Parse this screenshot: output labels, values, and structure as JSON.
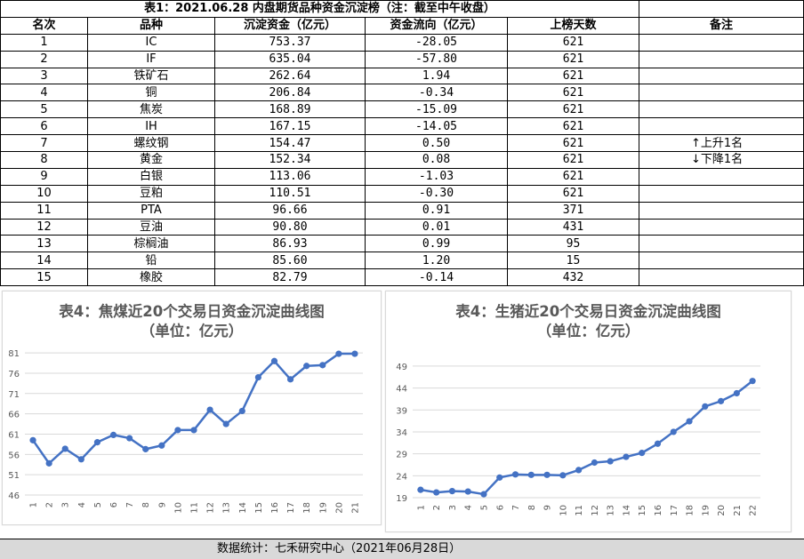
{
  "table": {
    "title": "表1：2021.06.28 内盘期货品种资金沉淀榜（注：截至中午收盘）",
    "headers": [
      "名次",
      "品种",
      "沉淀资金（亿元）",
      "资金流向（亿元）",
      "上榜天数",
      "备注"
    ],
    "rows": [
      {
        "rank": "1",
        "name": "IC",
        "capital": "753.37",
        "flow": "-28.05",
        "days": "621",
        "note": ""
      },
      {
        "rank": "2",
        "name": "IF",
        "capital": "635.04",
        "flow": "-57.80",
        "days": "621",
        "note": ""
      },
      {
        "rank": "3",
        "name": "铁矿石",
        "capital": "262.64",
        "flow": "1.94",
        "days": "621",
        "note": ""
      },
      {
        "rank": "4",
        "name": "铜",
        "capital": "206.84",
        "flow": "-0.34",
        "days": "621",
        "note": ""
      },
      {
        "rank": "5",
        "name": "焦炭",
        "capital": "168.89",
        "flow": "-15.09",
        "days": "621",
        "note": ""
      },
      {
        "rank": "6",
        "name": "IH",
        "capital": "167.15",
        "flow": "-14.05",
        "days": "621",
        "note": ""
      },
      {
        "rank": "7",
        "name": "螺纹钢",
        "capital": "154.47",
        "flow": "0.50",
        "days": "621",
        "note": "上升1名"
      },
      {
        "rank": "8",
        "name": "黄金",
        "capital": "152.34",
        "flow": "0.08",
        "days": "621",
        "note": "下降1名"
      },
      {
        "rank": "9",
        "name": "白银",
        "capital": "113.06",
        "flow": "-1.03",
        "days": "621",
        "note": ""
      },
      {
        "rank": "10",
        "name": "豆粕",
        "capital": "110.51",
        "flow": "-0.30",
        "days": "621",
        "note": ""
      },
      {
        "rank": "11",
        "name": "PTA",
        "capital": "96.66",
        "flow": "0.91",
        "days": "371",
        "note": ""
      },
      {
        "rank": "12",
        "name": "豆油",
        "capital": "90.80",
        "flow": "0.01",
        "days": "431",
        "note": ""
      },
      {
        "rank": "13",
        "name": "棕榈油",
        "capital": "86.93",
        "flow": "0.99",
        "days": "95",
        "note": ""
      },
      {
        "rank": "14",
        "name": "铅",
        "capital": "85.60",
        "flow": "1.20",
        "days": "15",
        "note": ""
      },
      {
        "rank": "15",
        "name": "橡胶",
        "capital": "82.79",
        "flow": "-0.14",
        "days": "432",
        "note": ""
      }
    ]
  },
  "chart_data": [
    {
      "type": "line",
      "title": "表4：焦煤近20个交易日资金沉淀曲线图",
      "subtitle": "（单位：亿元）",
      "x": [
        "1",
        "2",
        "3",
        "4",
        "5",
        "6",
        "7",
        "8",
        "9",
        "10",
        "11",
        "12",
        "13",
        "14",
        "15",
        "16",
        "17",
        "18",
        "19",
        "20",
        "21"
      ],
      "values": [
        59.5,
        53.8,
        57.4,
        54.8,
        59.0,
        60.8,
        60.0,
        57.3,
        58.2,
        62.0,
        62.0,
        67.0,
        63.5,
        66.7,
        75.0,
        79.0,
        74.5,
        77.8,
        78.0,
        80.8,
        80.8
      ],
      "yticks": [
        "46",
        "51",
        "56",
        "61",
        "66",
        "71",
        "76",
        "81"
      ],
      "ylim": [
        46,
        83
      ],
      "color": "#4472c4",
      "grid": true
    },
    {
      "type": "line",
      "title": "表4：生猪近20个交易日资金沉淀曲线图",
      "subtitle": "（单位：亿元）",
      "x": [
        "1",
        "2",
        "3",
        "4",
        "5",
        "6",
        "7",
        "8",
        "9",
        "10",
        "11",
        "12",
        "13",
        "14",
        "15",
        "16",
        "17",
        "18",
        "19",
        "20",
        "21",
        "22"
      ],
      "values": [
        20.8,
        20.2,
        20.5,
        20.4,
        19.8,
        23.6,
        24.3,
        24.2,
        24.2,
        24.1,
        25.3,
        27.0,
        27.3,
        28.3,
        29.2,
        31.3,
        34.0,
        36.4,
        39.8,
        41.0,
        42.8,
        45.6
      ],
      "yticks": [
        "19",
        "24",
        "29",
        "34",
        "39",
        "44",
        "49"
      ],
      "ylim": [
        19,
        51
      ],
      "color": "#4472c4",
      "grid": true
    }
  ],
  "footer": {
    "text": "数据统计：七禾研究中心（2021年06月28日）"
  },
  "icons": {
    "up": "up-arrow-icon",
    "down": "down-arrow-icon"
  }
}
